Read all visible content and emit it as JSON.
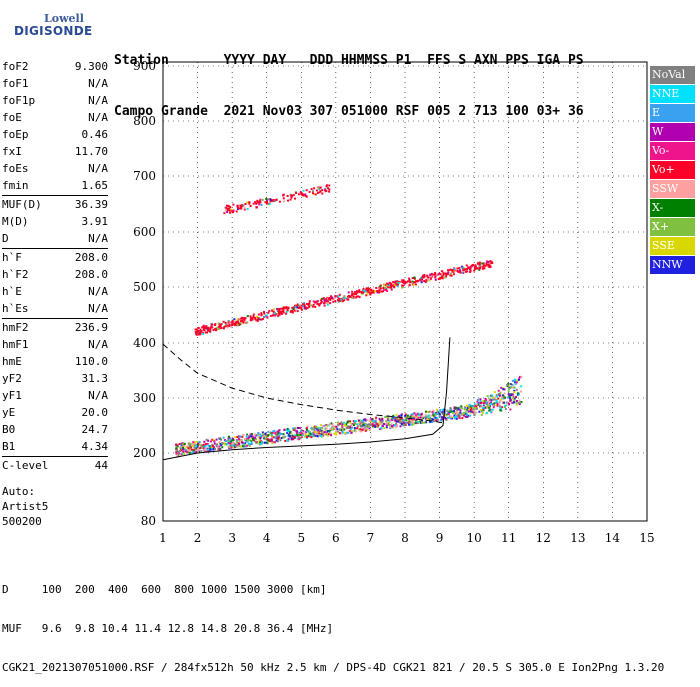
{
  "logo": {
    "top": "Lowell",
    "main": "DIGISONDE"
  },
  "header": {
    "row1": "Station       YYYY DAY   DDD HHMMSS P1  FFS S AXN PPS IGA PS",
    "row2": "Campo Grande  2021 Nov03 307 051000 RSF 005 2 713 100 03+ 36"
  },
  "params": [
    {
      "group": [
        {
          "k": "foF2",
          "v": "9.300"
        },
        {
          "k": "foF1",
          "v": "N/A"
        },
        {
          "k": "foF1p",
          "v": "N/A"
        },
        {
          "k": "foE",
          "v": "N/A"
        },
        {
          "k": "foEp",
          "v": "0.46"
        },
        {
          "k": "fxI",
          "v": "11.70"
        },
        {
          "k": "foEs",
          "v": "N/A"
        },
        {
          "k": "fmin",
          "v": "1.65"
        }
      ]
    },
    {
      "group": [
        {
          "k": "MUF(D)",
          "v": "36.39"
        },
        {
          "k": "M(D)",
          "v": "3.91"
        },
        {
          "k": "D",
          "v": "N/A"
        }
      ]
    },
    {
      "group": [
        {
          "k": "h`F",
          "v": "208.0"
        },
        {
          "k": "h`F2",
          "v": "208.0"
        },
        {
          "k": "h`E",
          "v": "N/A"
        },
        {
          "k": "h`Es",
          "v": "N/A"
        }
      ]
    },
    {
      "group": [
        {
          "k": "hmF2",
          "v": "236.9"
        },
        {
          "k": "hmF1",
          "v": "N/A"
        },
        {
          "k": "hmE",
          "v": "110.0"
        },
        {
          "k": "yF2",
          "v": "31.3"
        },
        {
          "k": "yF1",
          "v": "N/A"
        },
        {
          "k": "yE",
          "v": "20.0"
        },
        {
          "k": "B0",
          "v": "24.7"
        },
        {
          "k": "B1",
          "v": "4.34"
        }
      ]
    },
    {
      "group": [
        {
          "k": "C-level",
          "v": "44"
        }
      ]
    }
  ],
  "auto": [
    "Auto:",
    "Artist5",
    "500200"
  ],
  "legend": [
    {
      "label": "NoVal",
      "color": "#808080"
    },
    {
      "label": "NNE",
      "color": "#00e0ff"
    },
    {
      "label": "E",
      "color": "#3aa0f0"
    },
    {
      "label": "W",
      "color": "#b000b0"
    },
    {
      "label": "Vo-",
      "color": "#f0148c"
    },
    {
      "label": "Vo+",
      "color": "#ff0028"
    },
    {
      "label": "SSW",
      "color": "#ffa0a0"
    },
    {
      "label": "X-",
      "color": "#008000"
    },
    {
      "label": "X+",
      "color": "#80c040"
    },
    {
      "label": "SSE",
      "color": "#d8d800"
    },
    {
      "label": "NNW",
      "color": "#2020e0"
    }
  ],
  "footer": {
    "line1": "D     100  200  400  600  800 1000 1500 3000 [km]",
    "line2": "MUF   9.6  9.8 10.4 11.4 12.8 14.8 20.8 36.4 [MHz]",
    "line3": "CGK21_2021307051000.RSF / 284fx512h 50 kHz 2.5 km / DPS-4D CGK21 821 / 20.5 S 305.0 E Ion2Png 1.3.20"
  },
  "chart_data": {
    "type": "scatter",
    "xlim": [
      1,
      15
    ],
    "ylim": [
      80,
      900
    ],
    "xticks": [
      1,
      2,
      3,
      4,
      5,
      6,
      7,
      8,
      9,
      10,
      11,
      12,
      13,
      14,
      15
    ],
    "yticks": [
      80,
      200,
      300,
      400,
      500,
      600,
      700,
      800,
      900
    ],
    "grid": true,
    "legend_position": "right",
    "trace_bands": [
      {
        "name": "F2 trace",
        "x_start": 1.35,
        "x_end": 11.35,
        "y_start": 208,
        "y_end": 290,
        "color_mix": "multi"
      },
      {
        "name": "2nd hop F",
        "x_start": 1.9,
        "x_end": 10.5,
        "y_start": 422,
        "y_end": 545,
        "color_mix": "red"
      },
      {
        "name": "3rd hop F",
        "x_start": 2.7,
        "x_end": 5.8,
        "y_start": 640,
        "y_end": 680,
        "color_mix": "red"
      }
    ],
    "profile_line": [
      [
        1.0,
        188
      ],
      [
        2.0,
        200
      ],
      [
        3.0,
        206
      ],
      [
        4.0,
        210
      ],
      [
        5.0,
        213
      ],
      [
        6.0,
        216
      ],
      [
        7.0,
        220
      ],
      [
        8.0,
        226
      ],
      [
        8.8,
        234
      ],
      [
        9.1,
        250
      ],
      [
        9.2,
        310
      ],
      [
        9.3,
        410
      ]
    ],
    "muf_curve": [
      [
        1.0,
        398
      ],
      [
        1.5,
        370
      ],
      [
        2.0,
        345
      ],
      [
        3.0,
        318
      ],
      [
        4.0,
        300
      ],
      [
        5.0,
        288
      ],
      [
        6.0,
        278
      ],
      [
        7.0,
        270
      ],
      [
        8.0,
        264
      ],
      [
        8.8,
        258
      ],
      [
        9.1,
        255
      ]
    ]
  }
}
